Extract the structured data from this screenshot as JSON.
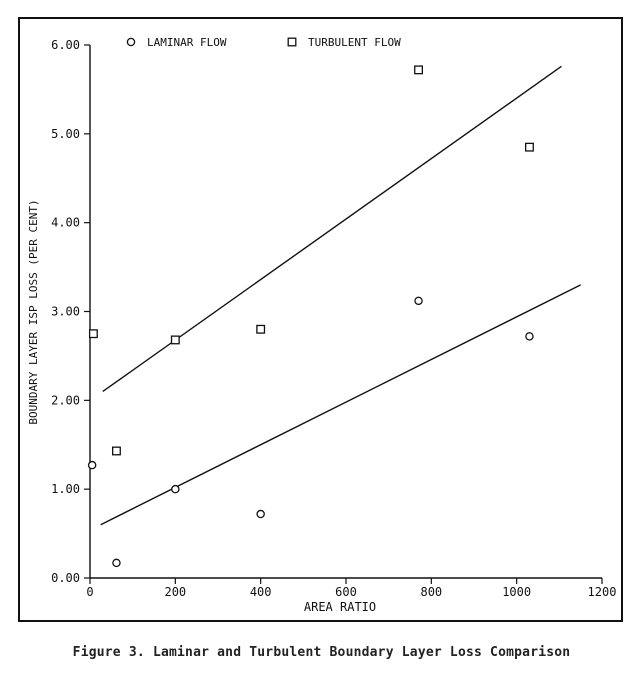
{
  "figure": {
    "caption": "Figure 3.  Laminar and Turbulent Boundary Layer Loss Comparison"
  },
  "colors": {
    "ink": "#111111",
    "paper": "#ffffff"
  },
  "chart_data": {
    "type": "scatter",
    "title": "",
    "xlabel": "AREA RATIO",
    "ylabel": "BOUNDARY LAYER ISP LOSS (PER CENT)",
    "xlim": [
      0,
      1200
    ],
    "ylim": [
      0,
      6
    ],
    "x_ticks": [
      "0",
      "200",
      "400",
      "600",
      "800",
      "1000",
      "1200"
    ],
    "y_ticks": [
      "0.00",
      "1.00",
      "2.00",
      "3.00",
      "4.00",
      "5.00",
      "6.00"
    ],
    "grid": false,
    "legend_position": "top",
    "series": [
      {
        "name": "LAMINAR FLOW",
        "marker": "circle",
        "points": [
          [
            5,
            1.27
          ],
          [
            62,
            0.17
          ],
          [
            200,
            1.0
          ],
          [
            400,
            0.72
          ],
          [
            770,
            3.12
          ],
          [
            1030,
            2.72
          ]
        ],
        "trendline": [
          [
            25,
            0.6
          ],
          [
            1150,
            3.3
          ]
        ]
      },
      {
        "name": "TURBULENT FLOW",
        "marker": "square",
        "points": [
          [
            8,
            2.75
          ],
          [
            62,
            1.43
          ],
          [
            200,
            2.68
          ],
          [
            400,
            2.8
          ],
          [
            770,
            5.72
          ],
          [
            1030,
            4.85
          ]
        ],
        "trendline": [
          [
            30,
            2.1
          ],
          [
            1105,
            5.76
          ]
        ]
      }
    ]
  }
}
